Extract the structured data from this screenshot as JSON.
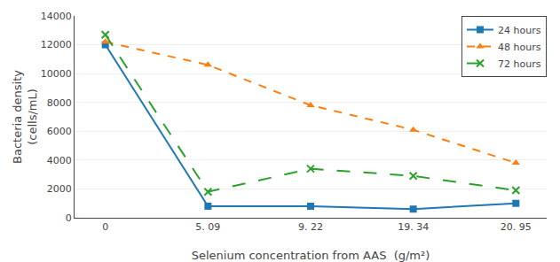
{
  "chart_data": {
    "type": "line",
    "categories": [
      "0",
      "5. 09",
      "9. 22",
      "19. 34",
      "20. 95"
    ],
    "series": [
      {
        "name": "24 hours",
        "values": [
          12000,
          800,
          800,
          600,
          1000
        ],
        "marker": "square",
        "line_style": "solid"
      },
      {
        "name": "48 hours",
        "values": [
          12200,
          10600,
          7800,
          6100,
          3800
        ],
        "marker": "triangle",
        "line_style": "dashed"
      },
      {
        "name": "72 hours",
        "values": [
          12700,
          1800,
          3400,
          2900,
          1900
        ],
        "marker": "x",
        "line_style": "longdashed"
      }
    ],
    "ylabel": "Bacteria density\n(cells/mL)",
    "xlabel": "Selenium concentration from AAS  (g/m²)",
    "ylim": [
      0,
      14000
    ],
    "yticks": [
      0,
      2000,
      4000,
      6000,
      8000,
      10000,
      12000,
      14000
    ],
    "grid": "y",
    "legend": "upper right"
  }
}
